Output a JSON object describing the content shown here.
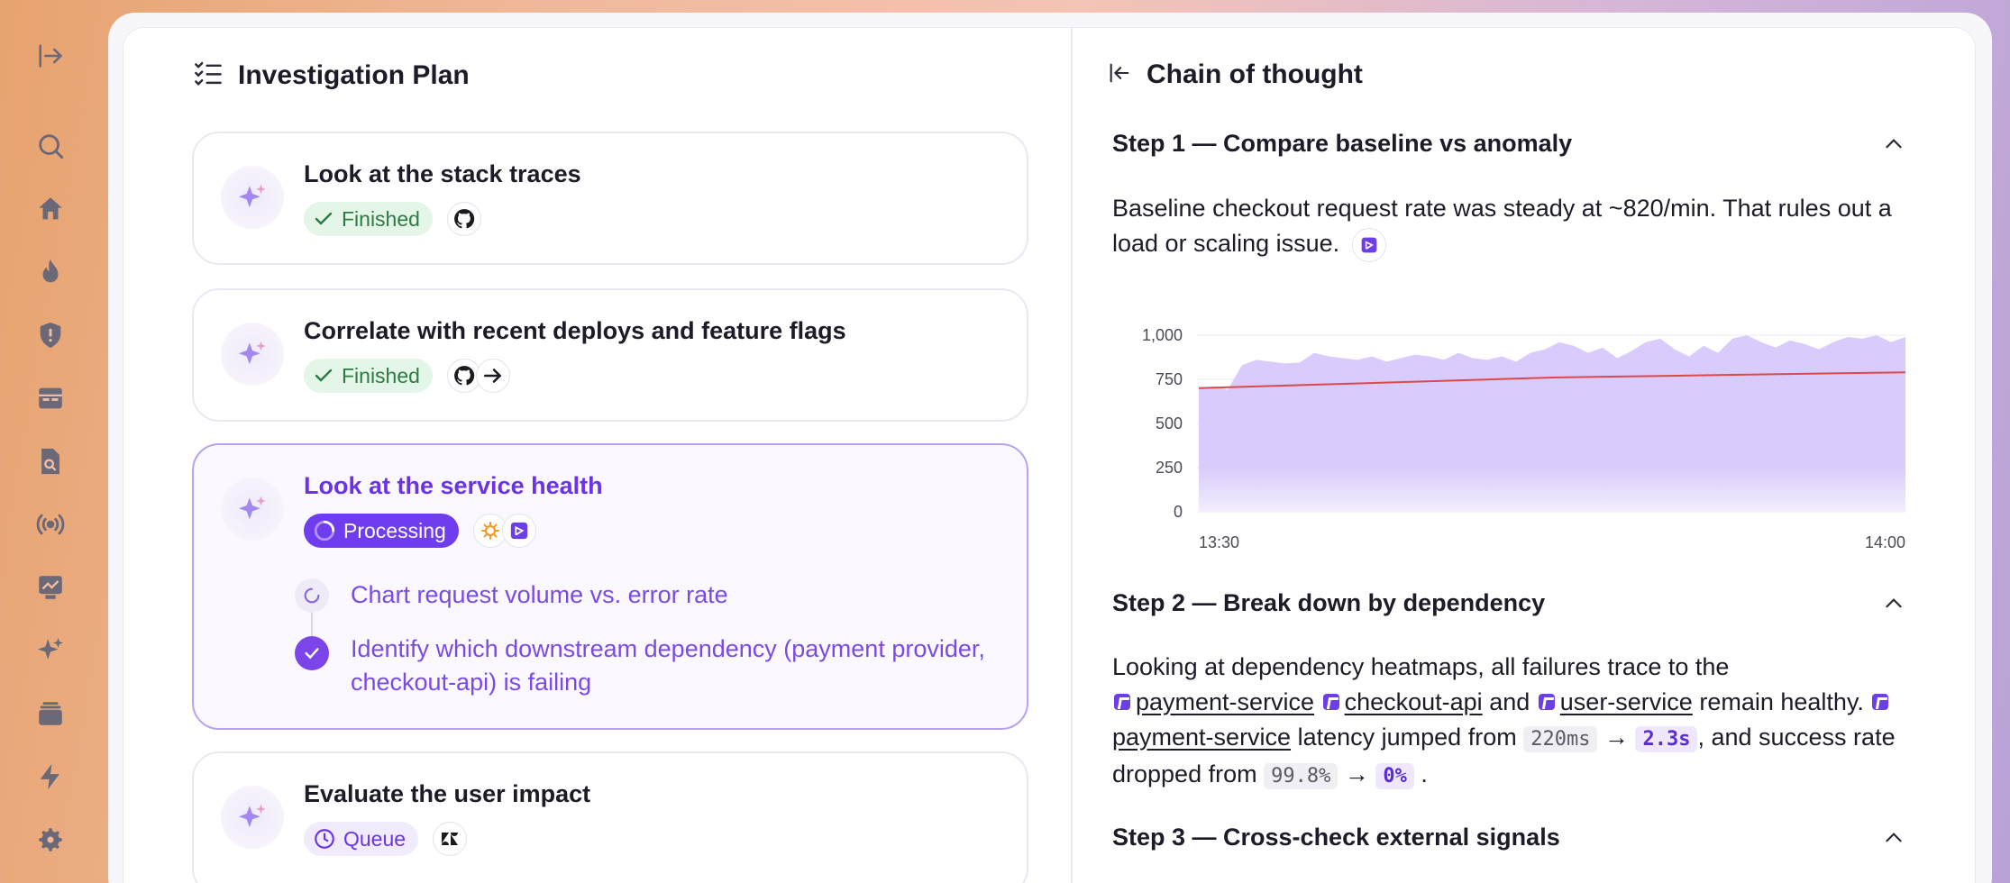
{
  "sidebar": {
    "icons": [
      "expand-icon",
      "search-icon",
      "home-icon",
      "fire-icon",
      "shield-icon",
      "dashboard-icon",
      "document-search-icon",
      "broadcast-icon",
      "chart-icon",
      "sparkles-icon",
      "stack-icon",
      "lightning-icon",
      "settings-icon"
    ]
  },
  "plan": {
    "title": "Investigation Plan",
    "tasks": [
      {
        "title": "Look at the stack traces",
        "status": "Finished",
        "tools": [
          "github-icon"
        ]
      },
      {
        "title": "Correlate with recent deploys and feature flags",
        "status": "Finished",
        "tools": [
          "github-icon",
          "arrow-right-icon"
        ]
      },
      {
        "title": "Look at the service health",
        "status": "Processing",
        "tools": [
          "grafana-icon",
          "sentry-icon"
        ],
        "subitems": [
          {
            "text": "Chart request volume vs. error rate",
            "state": "pending"
          },
          {
            "text": "Identify which downstream dependency (payment provider, checkout-api) is failing",
            "state": "done"
          }
        ]
      },
      {
        "title": "Evaluate the user impact",
        "status": "Queue",
        "tools": [
          "zendesk-icon"
        ]
      }
    ]
  },
  "cot": {
    "title": "Chain of thought",
    "step1": {
      "title": "Step 1 — Compare baseline vs anomaly",
      "body": "Baseline checkout request rate was steady at ~820/min. That rules out a load or scaling issue."
    },
    "step2": {
      "title": "Step 2 — Break down by dependency",
      "intro": "Looking at dependency heatmaps, all failures trace to the",
      "svc1": "payment-service",
      "svc2": "checkout-api",
      "and": "and",
      "svc3": "user-service",
      "remain": "remain healthy.",
      "svc4": "payment-service",
      "latency_text": "latency jumped from",
      "latency_from": "220ms",
      "latency_to": "2.3s",
      "success_text": ", and success rate dropped from",
      "success_from": "99.8%",
      "success_to": "0%",
      "end": "."
    },
    "step3": {
      "title": "Step 3 — Cross-check external signals"
    }
  },
  "chart_data": {
    "type": "area",
    "x_tick_labels": [
      "13:30",
      "14:00"
    ],
    "y_ticks": [
      "1,000",
      "750",
      "500",
      "250",
      "0"
    ],
    "ylim": [
      0,
      1000
    ],
    "area_color": "#d9cbfb",
    "line_color": "#d94a4a",
    "series": [
      {
        "values": [
          700,
          710,
          690,
          830,
          860,
          850,
          840,
          845,
          900,
          880,
          870,
          860,
          880,
          850,
          870,
          890,
          880,
          860,
          900,
          870,
          860,
          880,
          850,
          900,
          920,
          960,
          940,
          900,
          930,
          870,
          910,
          960,
          980,
          920,
          880,
          940,
          900,
          980,
          1000,
          960,
          930,
          970,
          950,
          920,
          960,
          990,
          980,
          1000,
          960,
          990
        ]
      },
      {
        "values": [
          700,
          720,
          740,
          760,
          770,
          780,
          790
        ]
      }
    ]
  }
}
